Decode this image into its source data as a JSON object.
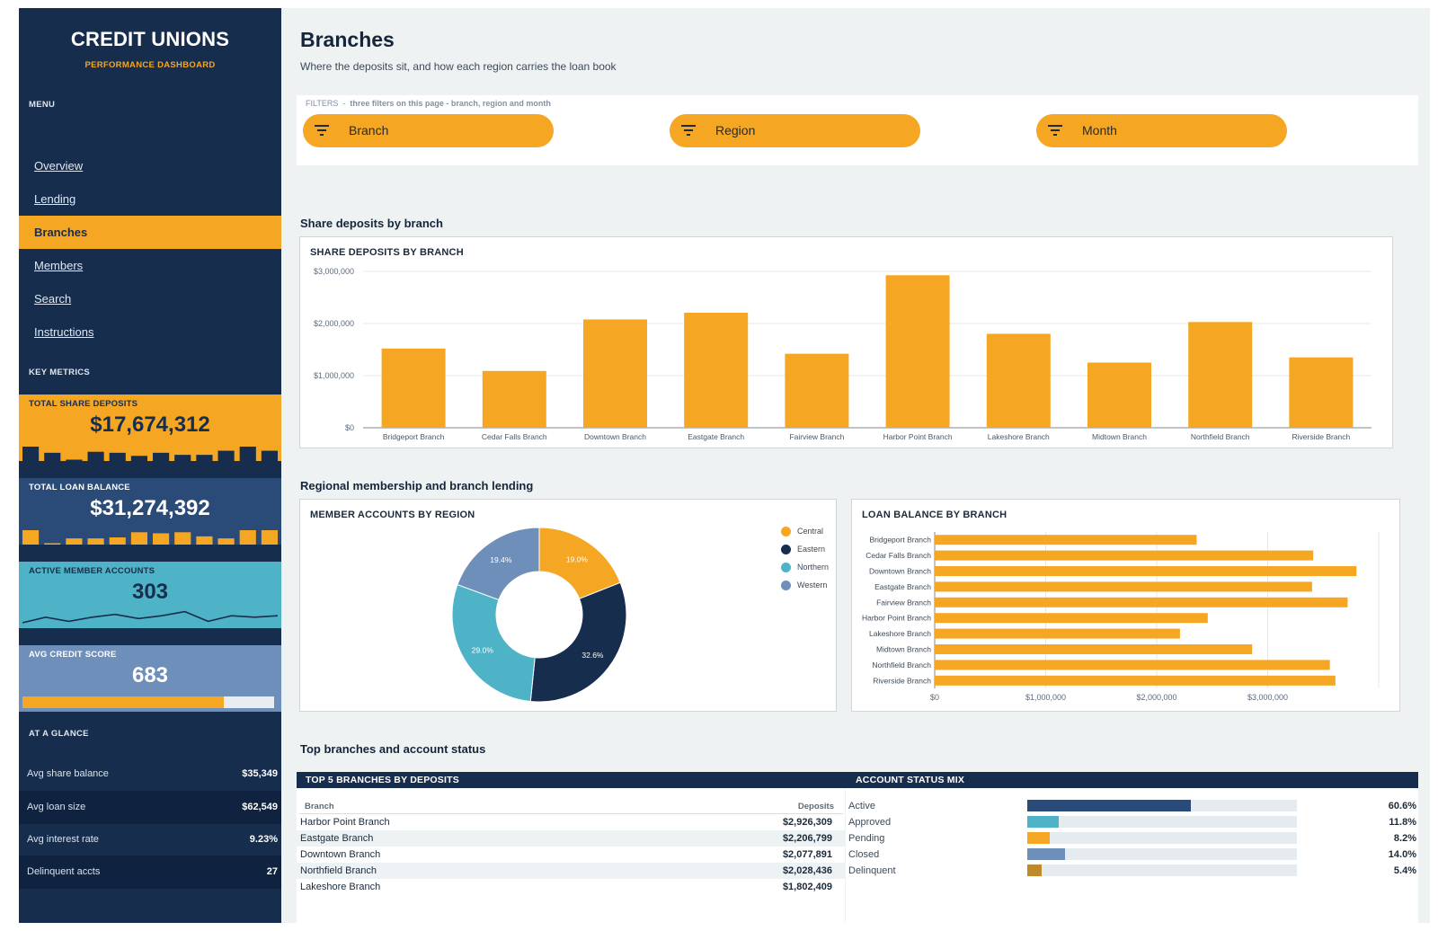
{
  "brand": {
    "title": "CREDIT UNIONS",
    "subtitle": "PERFORMANCE DASHBOARD"
  },
  "sidebar": {
    "menu_heading": "MENU",
    "nav": [
      {
        "label": "Overview",
        "active": false
      },
      {
        "label": "Lending",
        "active": false
      },
      {
        "label": "Branches",
        "active": true
      },
      {
        "label": "Members",
        "active": false
      },
      {
        "label": "Search",
        "active": false
      },
      {
        "label": "Instructions",
        "active": false
      }
    ],
    "metrics_heading": "KEY METRICS",
    "kpis": [
      {
        "label": "TOTAL SHARE DEPOSITS",
        "value": "$17,674,312",
        "bg": "#f5a623",
        "fg": "#172d4d",
        "spark_type": "bars",
        "spark_color": "#172d4d",
        "spark": [
          14,
          8,
          1,
          9,
          8,
          5,
          8,
          6,
          6,
          10,
          14,
          10
        ]
      },
      {
        "label": "TOTAL LOAN BALANCE",
        "value": "$31,274,392",
        "bg": "#2a4a78",
        "fg": "#ffffff",
        "spark_type": "bars",
        "spark_color": "#f5a623",
        "spark": [
          14,
          1,
          6,
          6,
          7,
          12,
          11,
          12,
          8,
          6,
          14,
          14
        ]
      },
      {
        "label": "ACTIVE MEMBER ACCOUNTS",
        "value": "303",
        "bg": "#4fb3c8",
        "fg": "#172d4d",
        "spark_type": "line",
        "spark_color": "#172d4d",
        "spark": [
          9,
          5,
          8,
          5,
          3,
          6,
          4,
          1,
          8,
          4,
          5,
          4
        ]
      },
      {
        "label": "AVG CREDIT SCORE",
        "value": "683",
        "bg": "#6f8fbb",
        "fg": "#ffffff",
        "spark_type": "progress",
        "progress_fraction": 0.8
      }
    ],
    "glance_heading": "AT A GLANCE",
    "glance": [
      {
        "label": "Avg share balance",
        "value": "$35,349"
      },
      {
        "label": "Avg loan size",
        "value": "$62,549"
      },
      {
        "label": "Avg interest rate",
        "value": "9.23%"
      },
      {
        "label": "Delinquent accts",
        "value": "27"
      }
    ]
  },
  "header": {
    "title": "Branches",
    "subtitle": "Where the deposits sit, and how each region carries the loan book"
  },
  "filters": {
    "note_prefix": "FILTERS",
    "note_text": "three filters on this page - branch, region and month",
    "pills": [
      {
        "label": "Branch",
        "icon": "filter-icon"
      },
      {
        "label": "Region",
        "icon": "filter-icon"
      },
      {
        "label": "Month",
        "icon": "filter-icon"
      }
    ]
  },
  "sections": {
    "deposits": "Share deposits by branch",
    "regional": "Regional membership and branch lending",
    "top": "Top branches and account status"
  },
  "chart_data": [
    {
      "type": "bar",
      "title": "SHARE DEPOSITS BY BRANCH",
      "categories": [
        "Bridgeport Branch",
        "Cedar Falls Branch",
        "Downtown Branch",
        "Eastgate Branch",
        "Fairview Branch",
        "Harbor Point Branch",
        "Lakeshore Branch",
        "Midtown Branch",
        "Northfield Branch",
        "Riverside Branch"
      ],
      "values": [
        1520000,
        1090000,
        2077891,
        2206799,
        1420000,
        2926309,
        1802409,
        1250000,
        2028436,
        1350000
      ],
      "ylim": [
        0,
        3000000
      ],
      "yticks": [
        0,
        1000000,
        2000000,
        3000000
      ],
      "ytick_labels": [
        "$0",
        "$1,000,000",
        "$2,000,000",
        "$3,000,000"
      ],
      "color": "#f5a623",
      "grid": true
    },
    {
      "type": "pie",
      "title": "MEMBER ACCOUNTS BY REGION",
      "donut": true,
      "slices": [
        {
          "label": "Central",
          "value": 19.0,
          "display": "19.0%",
          "color": "#f5a623"
        },
        {
          "label": "Eastern",
          "value": 32.6,
          "display": "32.6%",
          "color": "#172d4d"
        },
        {
          "label": "Northern",
          "value": 29.0,
          "display": "29.0%",
          "color": "#4fb3c8"
        },
        {
          "label": "Western",
          "value": 19.4,
          "display": "19.4%",
          "color": "#6f8fbb"
        }
      ],
      "legend_position": "top-right"
    },
    {
      "type": "bar",
      "orientation": "horizontal",
      "title": "LOAN BALANCE BY BRANCH",
      "categories": [
        "Bridgeport Branch",
        "Cedar Falls Branch",
        "Downtown Branch",
        "Eastgate Branch",
        "Fairview Branch",
        "Harbor Point Branch",
        "Lakeshore Branch",
        "Midtown Branch",
        "Northfield Branch",
        "Riverside Branch"
      ],
      "values": [
        2360000,
        3410000,
        3800000,
        3400000,
        3720000,
        2460000,
        2210000,
        2860000,
        3560000,
        3610000
      ],
      "xlim": [
        0,
        4000000
      ],
      "xticks": [
        0,
        1000000,
        2000000,
        3000000
      ],
      "xtick_labels": [
        "$0",
        "$1,000,000",
        "$2,000,000",
        "$3,000,000"
      ],
      "color": "#f5a623",
      "grid": true
    }
  ],
  "top5": {
    "title": "TOP 5 BRANCHES BY DEPOSITS",
    "col_branch": "Branch",
    "col_deposits": "Deposits",
    "rows": [
      {
        "branch": "Harbor Point Branch",
        "deposits": "$2,926,309"
      },
      {
        "branch": "Eastgate Branch",
        "deposits": "$2,206,799"
      },
      {
        "branch": "Downtown Branch",
        "deposits": "$2,077,891"
      },
      {
        "branch": "Northfield Branch",
        "deposits": "$2,028,436"
      },
      {
        "branch": "Lakeshore Branch",
        "deposits": "$1,802,409"
      }
    ]
  },
  "status_mix": {
    "title": "ACCOUNT STATUS MIX",
    "rows": [
      {
        "label": "Active",
        "percent": 60.6,
        "display": "60.6%",
        "color": "#2a4a78"
      },
      {
        "label": "Approved",
        "percent": 11.8,
        "display": "11.8%",
        "color": "#4fb3c8"
      },
      {
        "label": "Pending",
        "percent": 8.2,
        "display": "8.2%",
        "color": "#f5a623"
      },
      {
        "label": "Closed",
        "percent": 14.0,
        "display": "14.0%",
        "color": "#6f8fbb"
      },
      {
        "label": "Delinquent",
        "percent": 5.4,
        "display": "5.4%",
        "color": "#c08a2c"
      }
    ]
  }
}
